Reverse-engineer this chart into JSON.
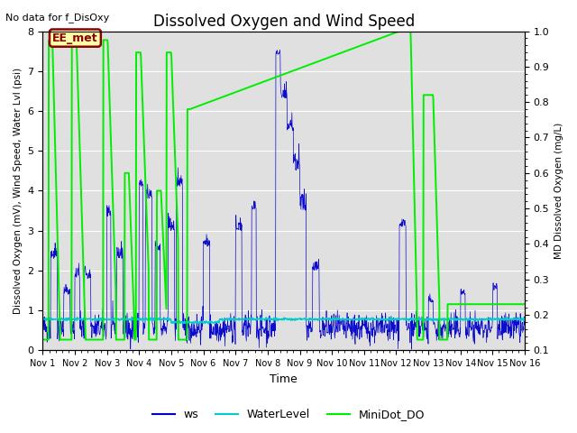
{
  "title": "Dissolved Oxygen and Wind Speed",
  "subtitle": "No data for f_DisOxy",
  "xlabel": "Time",
  "ylabel_left": "Dissolved Oxygen (mV), Wind Speed, Water Lvl (psi)",
  "ylabel_right": "MD Dissolved Oxygen (mg/L)",
  "ylim_left": [
    0.0,
    8.0
  ],
  "ylim_right": [
    0.1,
    1.0
  ],
  "bg_color": "#e0e0e0",
  "ws_color": "#0000cc",
  "water_color": "#00cccc",
  "do_color": "#00ee00",
  "annotation_text": "EE_met",
  "annotation_box_edgecolor": "#8b0000",
  "annotation_text_color": "#8b0000",
  "annotation_bg_color": "#ffffaa",
  "tick_labels": [
    "Nov 1",
    "Nov 2",
    "Nov 3",
    "Nov 4",
    "Nov 5",
    "Nov 6",
    "Nov 7",
    "Nov 8",
    "Nov 9",
    "Nov 10",
    "Nov 11",
    "Nov 12",
    "Nov 13",
    "Nov 14",
    "Nov 15",
    "Nov 16"
  ],
  "grid_color": "white",
  "legend_labels": [
    "ws",
    "WaterLevel",
    "MiniDot_DO"
  ]
}
